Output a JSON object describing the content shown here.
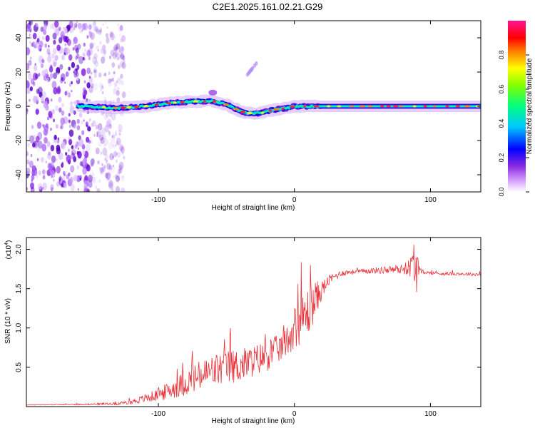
{
  "title": "C2E1.2025.161.02.21.G29",
  "chart_data": [
    {
      "type": "heatmap",
      "xlabel": "Height of straight line (km)",
      "ylabel": "Frequency (Hz)",
      "xlim": [
        -197,
        137
      ],
      "ylim": [
        -50,
        50
      ],
      "xticks": [
        -100,
        0,
        100
      ],
      "yticks": [
        -40,
        -20,
        0,
        20,
        40
      ],
      "colorbar": {
        "label": "Normalized spectral amplitude",
        "range": [
          0,
          1
        ],
        "ticks": [
          0.0,
          0.2,
          0.4,
          0.6,
          0.8
        ]
      },
      "ridge": {
        "description_points_x": [
          -155,
          -130,
          -110,
          -90,
          -70,
          -60,
          -50,
          -42,
          -35,
          -25,
          -15,
          -5,
          0,
          10,
          30,
          60,
          85,
          100,
          137
        ],
        "frequency_hz": [
          0,
          -1,
          0,
          2,
          3,
          3,
          1,
          -2,
          -4,
          -4,
          -2,
          -1,
          0,
          0,
          0,
          0,
          0,
          0,
          0
        ]
      },
      "noise_region_x": [
        -197,
        -130
      ],
      "burst_x": [
        -35,
        -28
      ],
      "burst_y": [
        18,
        25
      ]
    },
    {
      "type": "line",
      "xlabel": "Height of straight line (km)",
      "ylabel": "SNR (10 * v/v)",
      "yscale_label": "(x10",
      "yscale_exp": "4",
      "xlim": [
        -197,
        137
      ],
      "ylim": [
        0,
        2.15
      ],
      "xticks": [
        -100,
        0,
        100
      ],
      "yticks": [
        0.5,
        1.0,
        1.5,
        2.0
      ],
      "series": [
        {
          "x": [
            -197,
            -150,
            -125,
            -115,
            -100,
            -90,
            -80,
            -70,
            -60,
            -50,
            -40,
            -30,
            -20,
            -10,
            -5,
            0,
            5,
            10,
            15,
            20,
            25,
            30,
            35,
            40,
            50,
            60,
            70,
            80,
            85,
            88,
            90,
            92,
            95,
            100,
            110,
            120,
            137
          ],
          "y": [
            0.02,
            0.03,
            0.04,
            0.08,
            0.15,
            0.22,
            0.3,
            0.38,
            0.45,
            0.5,
            0.52,
            0.58,
            0.65,
            0.75,
            0.85,
            1.0,
            1.1,
            1.2,
            1.35,
            1.48,
            1.6,
            1.66,
            1.7,
            1.71,
            1.72,
            1.73,
            1.74,
            1.75,
            1.77,
            1.8,
            1.75,
            1.72,
            1.71,
            1.7,
            1.69,
            1.69,
            1.68
          ],
          "noise": [
            0.0,
            0.01,
            0.02,
            0.04,
            0.08,
            0.12,
            0.16,
            0.2,
            0.22,
            0.22,
            0.22,
            0.2,
            0.2,
            0.18,
            0.2,
            0.26,
            0.3,
            0.32,
            0.25,
            0.12,
            0.07,
            0.05,
            0.04,
            0.03,
            0.03,
            0.04,
            0.05,
            0.06,
            0.12,
            0.35,
            0.3,
            0.05,
            0.02,
            0.02,
            0.02,
            0.02,
            0.02
          ],
          "color": "#e8333a"
        }
      ]
    }
  ]
}
